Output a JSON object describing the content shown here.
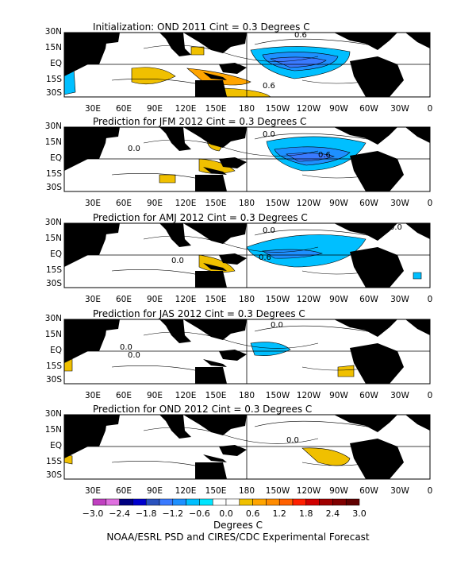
{
  "panels": [
    {
      "title": "Initialization: OND 2011  Cint = 0.3 Degrees C",
      "contour_labels": [
        "0.6",
        "0.6"
      ]
    },
    {
      "title": "Prediction for JFM 2012  Cint = 0.3 Degrees C",
      "contour_labels": [
        "0.0",
        "0.0",
        "0.0",
        "0.6"
      ]
    },
    {
      "title": "Prediction for AMJ 2012  Cint = 0.3 Degrees C",
      "contour_labels": [
        "0.0",
        "0.0",
        "0.0",
        "0.6"
      ]
    },
    {
      "title": "Prediction for JAS 2012  Cint = 0.3 Degrees C",
      "contour_labels": [
        "0.0",
        "0.0",
        "0.0",
        "0.0"
      ]
    },
    {
      "title": "Prediction for OND 2012  Cint = 0.3 Degrees C",
      "contour_labels": [
        "0.0",
        "0.0"
      ]
    }
  ],
  "lat_labels": [
    "30N",
    "15N",
    "EQ",
    "15S",
    "30S"
  ],
  "lon_labels": [
    "30E",
    "60E",
    "90E",
    "120E",
    "150E",
    "180",
    "150W",
    "120W",
    "90W",
    "60W",
    "30W",
    "0"
  ],
  "colorbar": {
    "labels": [
      "-3.0",
      "-2.4",
      "-1.8",
      "-1.2",
      "-0.6",
      "0.0",
      "0.6",
      "1.2",
      "1.8",
      "2.4",
      "3.0"
    ],
    "colors": [
      "#c040c0",
      "#e070e0",
      "#000080",
      "#0000cd",
      "#2a52be",
      "#3a7aff",
      "#1e90ff",
      "#00bfff",
      "#00e5ff",
      "#ffffff",
      "#ffffff",
      "#f0c000",
      "#ffa500",
      "#ff8c00",
      "#ff6000",
      "#ff2000",
      "#d00000",
      "#a00000",
      "#800000",
      "#600000"
    ],
    "units": "Degrees C"
  },
  "footer": "NOAA/ESRL PSD and CIRES/CDC Experimental Forecast"
}
